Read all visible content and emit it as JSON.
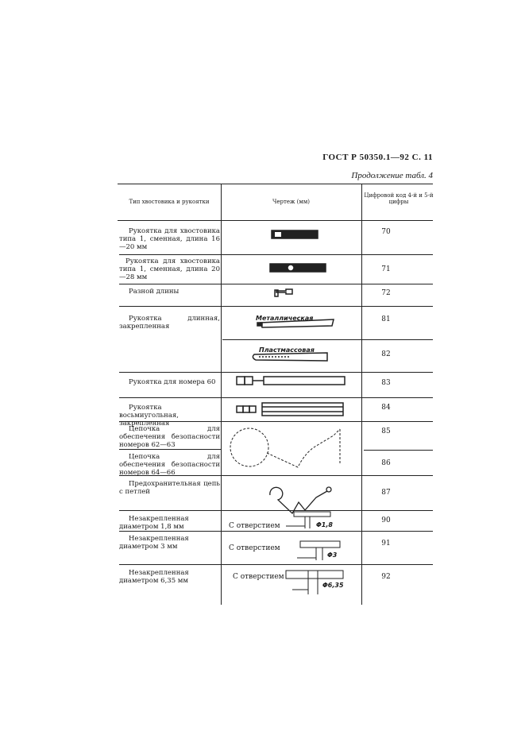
{
  "header": {
    "standard": "ГОСТ Р 50350.1—92 С. 11",
    "continuation": "Продолжение табл. 4"
  },
  "table": {
    "columns": [
      "Тип хвостовика и рукоятки",
      "Чертеж (мм)",
      "Цифровой код 4-й и 5-й цифры"
    ],
    "rows": [
      {
        "type": "Рукоятка для хвостовика типа 1, сменная, длина 16—20 мм",
        "code": "70"
      },
      {
        "type": "Рукоятка для хвостовика типа 1, сменная, длина 20—28 мм",
        "code": "71"
      },
      {
        "type": "Разной длины",
        "code": "72"
      },
      {
        "type": "Рукоятка длинная, закрепленная",
        "drawing_label": "Металлическая",
        "code": "81"
      },
      {
        "type": "",
        "drawing_label": "Пластмассовая",
        "code": "82"
      },
      {
        "type": "Рукоятка для номера 60",
        "code": "83"
      },
      {
        "type": "Рукоятка восьмиугольная, закрепленная",
        "code": "84"
      },
      {
        "type": "Цепочка для обеспечения безопасности номеров 62—63",
        "code": "85"
      },
      {
        "type": "Цепочка для обеспечения безопасности номеров 64—66",
        "code": "86"
      },
      {
        "type": "Предохранительная цепь с петлей",
        "code": "87"
      },
      {
        "type": "Незакрепленная диаметром 1,8 мм",
        "drawing_label": "С отверстием",
        "dim": "Φ1,8",
        "code": "90"
      },
      {
        "type": "Незакрепленная диаметром 3 мм",
        "drawing_label": "С отверстием",
        "dim": "Φ3",
        "code": "91"
      },
      {
        "type": "Незакрепленная диаметром 6,35 мм",
        "drawing_label": "С отверстием",
        "dim": "Φ6,35",
        "code": "92"
      }
    ]
  }
}
